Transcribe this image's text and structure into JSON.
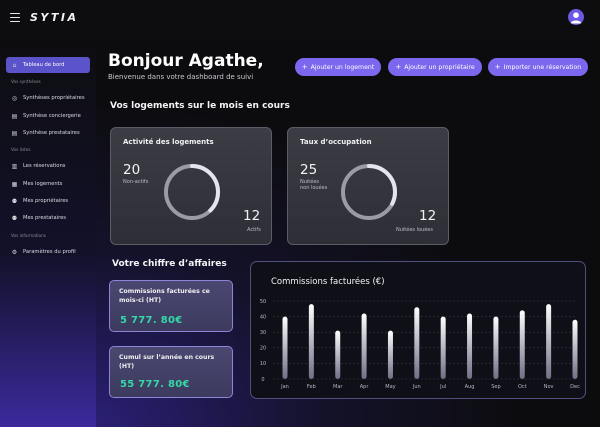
{
  "app": {
    "logo": "SYTIA"
  },
  "sidebar": {
    "items": [
      {
        "label": "Tableau de bord",
        "icon": "home-icon",
        "glyph": "⌂"
      },
      {
        "label": "Synthèses propriétaires",
        "icon": "chat-icon",
        "glyph": "◎"
      },
      {
        "label": "Synthèse conciergerie",
        "icon": "document-icon",
        "glyph": "▤"
      },
      {
        "label": "Synthèse prestataires",
        "icon": "document-icon",
        "glyph": "▤"
      },
      {
        "label": "Les réservations",
        "icon": "book-icon",
        "glyph": "▥"
      },
      {
        "label": "Mes logements",
        "icon": "building-icon",
        "glyph": "▦"
      },
      {
        "label": "Mes propriétaires",
        "icon": "people-icon",
        "glyph": "⚉"
      },
      {
        "label": "Mes prestataires",
        "icon": "people-icon",
        "glyph": "⚉"
      },
      {
        "label": "Paramètres du profil",
        "icon": "gear-icon",
        "glyph": "⚙"
      }
    ],
    "sections": {
      "syntheses": "Vos synthèses",
      "lists": "Vos listes",
      "info": "Vos informations"
    }
  },
  "header": {
    "greeting": "Bonjour Agathe,",
    "subtitle": "Bienvenue dans votre dashboard de suivi"
  },
  "actions": {
    "add_logement": "Ajouter un logement",
    "add_proprietaire": "Ajouter un propriétaire",
    "import_reservation": "Importer une réservation"
  },
  "logements": {
    "section_title": "Vos logements sur le mois en cours",
    "activity": {
      "title": "Activité des logements",
      "inactive_count": "20",
      "inactive_label": "Non-actifs",
      "active_count": "12",
      "active_label": "Actifs",
      "active_fraction": 0.375
    },
    "occupation": {
      "title": "Taux d’occupation",
      "unbooked_count": "25",
      "unbooked_label_1": "Nuitées",
      "unbooked_label_2": "non louées",
      "booked_count": "12",
      "booked_label": "Nuitées louées",
      "booked_fraction": 0.324
    }
  },
  "revenue": {
    "section_title": "Votre chiffre d’affaires",
    "monthly_title": "Commissions facturées ce mois-ci (HT)",
    "monthly_value": "5 777. 80€",
    "yearly_title": "Cumul sur l’année en cours (HT)",
    "yearly_value": "55 777. 80€"
  },
  "colors": {
    "accent": "#7b68ee",
    "active_nav": "#5b53c9",
    "money": "#33d9a6"
  },
  "chart_data": {
    "type": "bar",
    "title": "Commissions facturées (€)",
    "categories": [
      "Jan",
      "Feb",
      "Mar",
      "Apr",
      "May",
      "Jun",
      "Jul",
      "Aug",
      "Sep",
      "Oct",
      "Nov",
      "Dec"
    ],
    "values": [
      40,
      48,
      31,
      42,
      31,
      46,
      40,
      42,
      40,
      44,
      48,
      38
    ],
    "ylim": [
      0,
      50
    ],
    "yticks": [
      0,
      10,
      20,
      30,
      40,
      50
    ],
    "grid": true
  }
}
